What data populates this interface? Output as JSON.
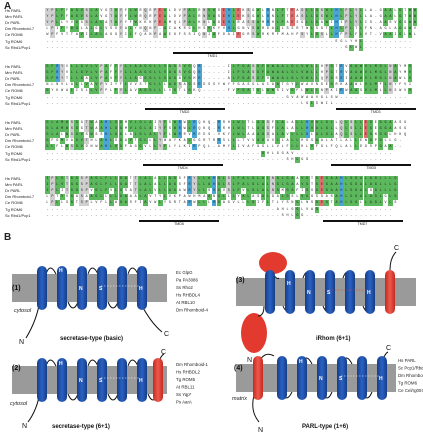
{
  "panel_a": {
    "letter": "A",
    "blocks": [
      {
        "sequences": [
          {
            "name": "Hs PARL",
            "residues": "YPLFFAGVSLAVGTAYFLWRQRPEALDVPALRNVASEHLEKSGWLRNLFTEASLLGSWLHLPLYLLA-GAALGTWW"
          },
          {
            "name": "Mm PARL",
            "residues": "YPLFFAGVSLAVGTAYFLWRQRPEALDVPALRNVASEHLEKSGWLRNLFTEASLLGSWLHLPLYLLA-GAALGTWW"
          },
          {
            "name": "Dr PARL",
            "residues": "YPLLYVGGSLALATAYYFWKKKPEAMQLPALKNLAGEHLRASSWMRHLFAESGLLGAWIHIPLYLIS-AASVGGWW"
          },
          {
            "name": "Dm Rhomboid-7",
            "residues": "LPIFYAGLALGLVSGYALYNQNP-AIAKRGLHSVKYVHLGNVSWRDALLSSRTWLSGTLHLPLTLFN-AGLAGAWV"
          },
          {
            "name": "Ce ROM6",
            "residues": "WPFVTTAVILALAGGYILFQANPAAEGFSSIQNIAFDAIEGRSWRKRFMAHPSYLGSLLHPPLFLVT-VAAIGLWL"
          },
          {
            "name": "Tg ROM6",
            "residues": "-----------------------------------------------------------EGLYHL----------"
          },
          {
            "name": "Sc Rbd1/Pcp1",
            "residues": "-------------------------------------------------------------GLWL----------"
          }
        ],
        "tm_labels": [
          {
            "label": "TMD1"
          }
        ]
      },
      {
        "sequences": [
          {
            "name": "Hs PARL",
            "residues": "GFRYVLLGVLVPAFFYLLAAGGLLVAGSVGQR-----ILFGASGFAWAALGLVWLLHPGTRVAAWVLMGLNAYMV"
          },
          {
            "name": "Mm PARL",
            "residues": "GFRYVLLGVLVPAFFYLLAAGGLLVAGSVGQR-----ILFGASGFAWAALGLVWLLHPGTRVAAWVLMGLNAYMV"
          },
          {
            "name": "Dr PARL",
            "residues": "GFRYTLLGALVPAVFYLLAGGGLLVAGAVGHR-----ALFGASGFVWAALGLVWLLQPGSRIAAWVLMGLNAWLV"
          },
          {
            "name": "Dm Rhomboid-7",
            "residues": "NLNVLALLVAVPVIYFLVVSTGLLLAGSAGSRDSSYWYFGASGLAIAATGYLWAVNSEGRKAAWLVLMFLNYFVI"
          },
          {
            "name": "Ce ROM6",
            "residues": "GYKWALISLLVPPLFYLAVAGGLLLVGTLGKQ-----FVFGATGLAWSIVGFLWLLNPKIRWAASVLMLLNSWVV"
          },
          {
            "name": "Tg ROM6",
            "residues": "-------------------------------------------------GVAWAAVGLSW--------------"
          },
          {
            "name": "Sc Rbd1/Pcp1",
            "residues": "----------------------------------------------------LGLSWIL---------------"
          }
        ],
        "tm_labels": [
          {
            "label": "TMD2"
          },
          {
            "label": "TMD3"
          }
        ]
      },
      {
        "sequences": [
          {
            "name": "Hs PARL",
            "residues": "GLAMWSGGTWAAHLGGMVLGLAIYFSWRWLRQKQ-RRHLWLTLAGSFLALALLHVALGLLQLSLLEGEGGAASG"
          },
          {
            "name": "Mm PARL",
            "residues": "GLAMWSGGTWAAHLGGMVLGLAIYFSWRWLRQKQ-RRHLWLTLAGSFLALALLHVALGLLQLSLLEGEGGAASG"
          },
          {
            "name": "Dr PARL",
            "residues": "GLALWSGVSWSSHLGGLALGLALYFLWRRVRRDS-VKYLWLAAAGSALAVLLLHLALGLAQLSLLEGNGGLHHQ"
          },
          {
            "name": "Dm Rhomboid-7",
            "residues": "GFGMVAGVTNLAHLSGAVTGLLLYWAYKALGGRTRRSLLLTVVAGAVLLALLHGSAALATLALLEWGPGLLG-"
          },
          {
            "name": "Ce ROM6",
            "residues": "GLFLWSGVDNWAHLGGFAGGVLLYFLYLKIRPQL-AMYLIVAFGSLLVLFLLHLVFGLFQLALLDGSPGAA--"
          },
          {
            "name": "Tg ROM6",
            "residues": "--------------------------------------------GHLGGAV--------------------"
          },
          {
            "name": "Sc Rbd1/Pcp1",
            "residues": "-------------------------------------------------SHLGG-----------------"
          }
        ],
        "tm_labels": [
          {
            "label": "TMD4"
          },
          {
            "label": "TMD5"
          }
        ]
      },
      {
        "sequences": [
          {
            "name": "Hs PARL",
            "residues": "IPLVTGGSPAGLFLLGATTLALALLAGSFRYLLAHGLSLFALGLALNGLGAAVGTGEGAAHLGGALAGLLLG"
          },
          {
            "name": "Mm PARL",
            "residues": "IPLVTGGSPAGLFLLGATTLALALLAGSFRYLLAHGLSLFALGLALNGLGAAVGTGEGAAHLGGALAGLLLG"
          },
          {
            "name": "Dr PARL",
            "residues": "IPLITGGSPVGLFVLGSATLALVLLAGAWRYLLSHGVSLFVLGLALNGMGAFIGSGEGAAHLGGALGGLLLG"
          },
          {
            "name": "Dm Rhomboid-7",
            "residues": "LPTVVGASAAGLLLLGAAALAVTYLVKPAWHMAANGLLLYALASALGALGSLVGGSGASAHLGGALAGLGLG"
          },
          {
            "name": "Ce ROM6",
            "residues": "LPLLSGTSPLVFLLAGASFIAVWLYGRTARWLLLHGAGVLLLGIFLTLYSNGLNSGEGTAHLGGLLAGLVLS"
          },
          {
            "name": "Tg ROM6",
            "residues": "-----------------------------------------------AHLGGLVAG---------------"
          },
          {
            "name": "Sc Rbd1/Pcp1",
            "residues": "------------------------------------------------SHLGG------------------"
          }
        ],
        "tm_labels": [
          {
            "label": "TMD6"
          },
          {
            "label": "TMD7"
          }
        ]
      }
    ]
  },
  "panel_b": {
    "letter": "B",
    "topologies": [
      {
        "number": "(1)",
        "type_label": "secretase-type (basic)",
        "side_label": "cytosol",
        "n_label": "N",
        "c_label": "C",
        "motif_labels": [
          "H",
          "N",
          "S",
          "H"
        ],
        "species": [
          "Ec GlpG",
          "Pa PA3086",
          "Ss Rho2",
          "Hs RHBDL4",
          "At RBL10",
          "Dm Rhomboid-4"
        ]
      },
      {
        "number": "(3)",
        "type_label": "iRhom (6+1)",
        "side_label": "",
        "n_label": "N",
        "c_label": "C",
        "motif_labels": [
          "H",
          "N",
          "S",
          "H"
        ],
        "species": []
      },
      {
        "number": "(2)",
        "type_label": "secretase-type (6+1)",
        "side_label": "cytosol",
        "n_label": "N",
        "c_label": "C",
        "motif_labels": [
          "H",
          "N",
          "S",
          "H"
        ],
        "species": [
          "Dm Rhomboid-1",
          "Hs RHBDL2",
          "Tg ROM5",
          "At RBL11",
          "Ss Yqp*",
          "Ps AarA"
        ]
      },
      {
        "number": "(4)",
        "type_label": "PARL-type (1+6)",
        "side_label": "matrix",
        "n_label": "N",
        "c_label": "C",
        "motif_labels": [
          "H",
          "N",
          "S",
          "H"
        ],
        "species": [
          "Hs PARL",
          "Sc Pcp1/Rbd1",
          "Dm Rhomboid-7",
          "Tg ROM6",
          "Ce Cel/rg05745"
        ]
      }
    ]
  },
  "colors": {
    "helix_blue": "#1f4fa8",
    "helix_red": "#e23a2e",
    "membrane_gray": "#9a9a9a",
    "aln_green": "#5cb85c",
    "aln_blue": "#4aa6d6",
    "aln_red": "#e07070",
    "aln_gray": "#cfcfcf"
  }
}
